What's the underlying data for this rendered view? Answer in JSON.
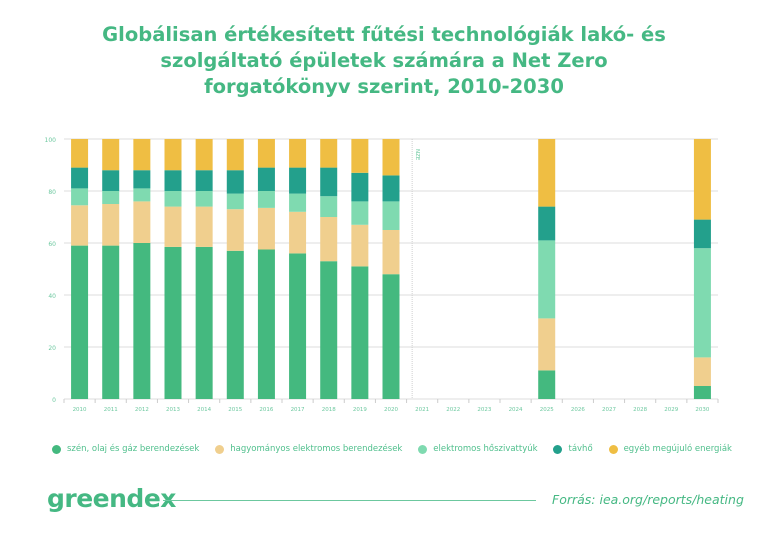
{
  "chart_data": {
    "type": "bar",
    "stacked": true,
    "title": "Globálisan értékesített fűtési technológiák lakó- és szolgáltató épületek számára a Net Zero forgatókönyv szerint, 2010-2030",
    "title_lines": [
      "Globálisan értékesített fűtési technológiák lakó- és",
      "szolgáltató épületek számára a Net Zero",
      "forgatókönyv szerint, 2010-2030"
    ],
    "xlabel": "",
    "ylabel": "",
    "ylim": [
      0,
      100
    ],
    "yticks": [
      "0",
      "20",
      "40",
      "60",
      "80",
      "100"
    ],
    "grid": true,
    "categories": [
      "2010",
      "2011",
      "2012",
      "2013",
      "2014",
      "2015",
      "2016",
      "2017",
      "2018",
      "2019",
      "2020",
      "2021",
      "2022",
      "2023",
      "2024",
      "2025",
      "2026",
      "2027",
      "2028",
      "2029",
      "2030"
    ],
    "annotation": {
      "text": "NZE",
      "at": "2021"
    },
    "legend_position": "bottom",
    "series": [
      {
        "name": "szén, olaj és gáz berendezések",
        "color": "#44b97f",
        "values": [
          59,
          59,
          60,
          58.5,
          58.5,
          57,
          57.5,
          56,
          53,
          51,
          48,
          null,
          null,
          null,
          null,
          11,
          null,
          null,
          null,
          null,
          5
        ]
      },
      {
        "name": "hagyományos elektromos berendezések",
        "color": "#f0cf8e",
        "values": [
          15.5,
          16,
          16,
          15.5,
          15.5,
          16,
          16,
          16,
          17,
          16,
          17,
          null,
          null,
          null,
          null,
          20,
          null,
          null,
          null,
          null,
          11
        ]
      },
      {
        "name": "elektromos hőszivattyúk",
        "color": "#7fdab0",
        "values": [
          6.5,
          5,
          5,
          6,
          6,
          6,
          6.5,
          7,
          8,
          9,
          11,
          null,
          null,
          null,
          null,
          30,
          null,
          null,
          null,
          null,
          42
        ]
      },
      {
        "name": "távhő",
        "color": "#23a08c",
        "values": [
          8,
          8,
          7,
          8,
          8,
          9,
          9,
          10,
          11,
          11,
          10,
          null,
          null,
          null,
          null,
          13,
          null,
          null,
          null,
          null,
          11
        ]
      },
      {
        "name": "egyéb megújuló energiák",
        "color": "#efbe43",
        "values": [
          11,
          12,
          12,
          12,
          12,
          12,
          11,
          11,
          11,
          13,
          14,
          null,
          null,
          null,
          null,
          26,
          null,
          null,
          null,
          null,
          31
        ]
      }
    ]
  },
  "brand": "greendex",
  "source": "Forrás: iea.org/reports/heating"
}
